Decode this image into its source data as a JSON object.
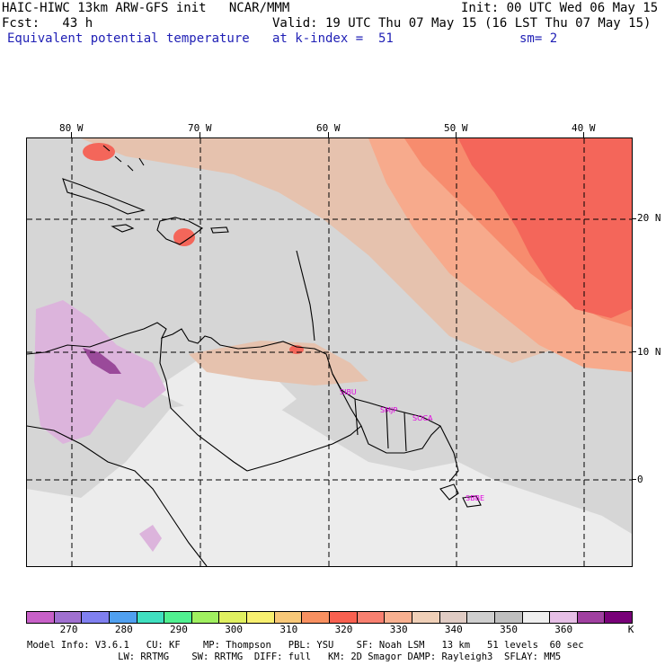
{
  "header": {
    "left1": "HAIC-HIWC 13km ARW-GFS init   NCAR/MMM",
    "left2": "Fcst:   43 h",
    "left3": "Equivalent potential temperature",
    "right1": "Init: 00 UTC Wed 06 May 15",
    "right2": "Valid: 19 UTC Thu 07 May 15 (16 LST Thu 07 May 15)",
    "right3a": "at k-index =  51",
    "right3b": "sm= 2"
  },
  "axes": {
    "lon_labels": [
      "80 W",
      "70 W",
      "60 W",
      "50 W",
      "40 W"
    ],
    "lat_labels": [
      "20 N",
      "10 N",
      "0"
    ]
  },
  "cities": [
    "SIBU",
    "SMJP",
    "SOCA",
    "SBBE"
  ],
  "colorbar": {
    "colors": [
      "#c860c8",
      "#a070d0",
      "#8080f0",
      "#50a0f0",
      "#40e0c0",
      "#50f090",
      "#a0f060",
      "#e0f060",
      "#f8f070",
      "#f8c878",
      "#f89060",
      "#f86050",
      "#f88070",
      "#f8b090",
      "#f0d0b8",
      "#e0ccc4",
      "#cfcfcf",
      "#bfbfbf",
      "#efefef",
      "#e6bfe6",
      "#a040a0",
      "#780078"
    ],
    "labels": [
      "270",
      "280",
      "290",
      "300",
      "310",
      "320",
      "330",
      "340",
      "350",
      "360"
    ],
    "unit": "K"
  },
  "footer": {
    "line1": "Model Info: V3.6.1   CU: KF    MP: Thompson   PBL: YSU    SF: Noah LSM   13 km   51 levels  60 sec",
    "line2": "                LW: RRTMG    SW: RRTMG  DIFF: full   KM: 2D Smagor DAMP: Rayleigh3  SFLAY: MM5"
  },
  "map_colors": {
    "base": "#d6d6d6",
    "light": "#ececec",
    "tan": "#e6c2ae",
    "salmon": "#f7aa8c",
    "orange": "#f78c6e",
    "red": "#f4665a",
    "purple": "#dcb4dc",
    "dpurple": "#9a4a9a"
  }
}
